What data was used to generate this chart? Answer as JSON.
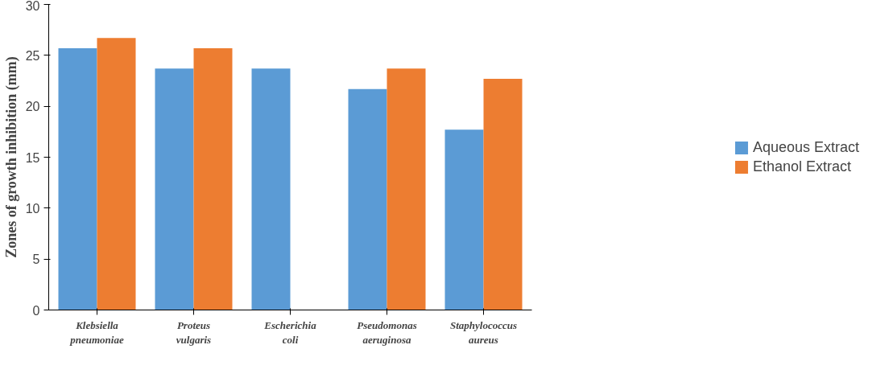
{
  "chart_data": {
    "type": "bar",
    "ylabel": "Zones of growth inhibition (mm)",
    "categories": [
      "Klebsiella\npneumoniae",
      "Proteus\nvulgaris",
      "Escherichia\ncoli",
      "Pseudomonas\naeruginosa",
      "Staphylococcus\naureus"
    ],
    "series": [
      {
        "name": "Aqueous Extract",
        "color": "#5b9bd5",
        "values": [
          25.7,
          23.7,
          23.7,
          21.7,
          17.7
        ]
      },
      {
        "name": "Ethanol Extract",
        "color": "#ed7d31",
        "values": [
          26.7,
          25.7,
          0,
          23.7,
          22.7
        ]
      }
    ],
    "ylim": [
      0,
      30
    ],
    "yticks": [
      0,
      5,
      10,
      15,
      20,
      25,
      30
    ],
    "grid": false,
    "legend": "right"
  }
}
